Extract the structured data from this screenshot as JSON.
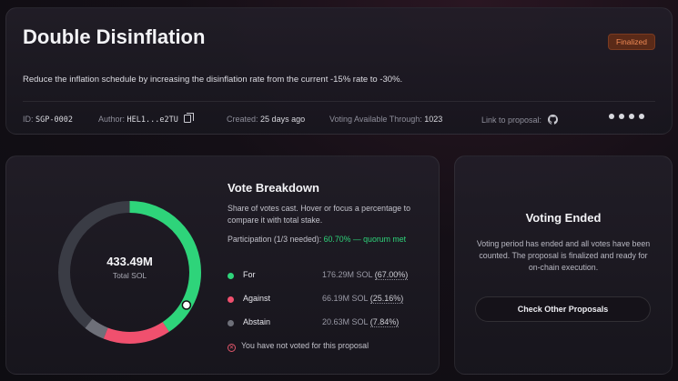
{
  "proposal": {
    "title": "Double Disinflation",
    "status": "Finalized",
    "description": "Reduce the inflation schedule by increasing the disinflation rate from the current -15% rate to -30%.",
    "id_label": "ID:",
    "id": "SGP-0002",
    "author_label": "Author:",
    "author": "HEL1...e2TU",
    "created_label": "Created:",
    "created": "25 days ago",
    "voting_label": "Voting Available Through:",
    "voting_through": "1023",
    "link_label": "Link to proposal:"
  },
  "vote_breakdown": {
    "title": "Vote Breakdown",
    "subtitle": "Share of votes cast. Hover or focus a percentage to compare it with total stake.",
    "participation_label": "Participation (1/3 needed):",
    "participation_value": "60.70% — quorum met",
    "total": "433.49M",
    "total_label": "Total SOL",
    "rows": [
      {
        "name": "For",
        "amount": "176.29M SOL",
        "pct": "(67.00%)",
        "color": "#2ed47a"
      },
      {
        "name": "Against",
        "amount": "66.19M SOL",
        "pct": "(25.16%)",
        "color": "#f0506e"
      },
      {
        "name": "Abstain",
        "amount": "20.63M SOL",
        "pct": "(7.84%)",
        "color": "#6e7079"
      }
    ],
    "not_voted": "You have not voted for this proposal"
  },
  "chart_data": {
    "type": "pie",
    "categories": [
      "For",
      "Against",
      "Abstain"
    ],
    "values": [
      67.0,
      25.16,
      7.84
    ],
    "participation": 60.7,
    "colors": [
      "#2ed47a",
      "#f0506e",
      "#6e7079"
    ]
  },
  "voting_ended": {
    "title": "Voting Ended",
    "text": "Voting period has ended and all votes have been counted. The proposal is finalized and ready for on-chain execution.",
    "button": "Check Other Proposals"
  }
}
